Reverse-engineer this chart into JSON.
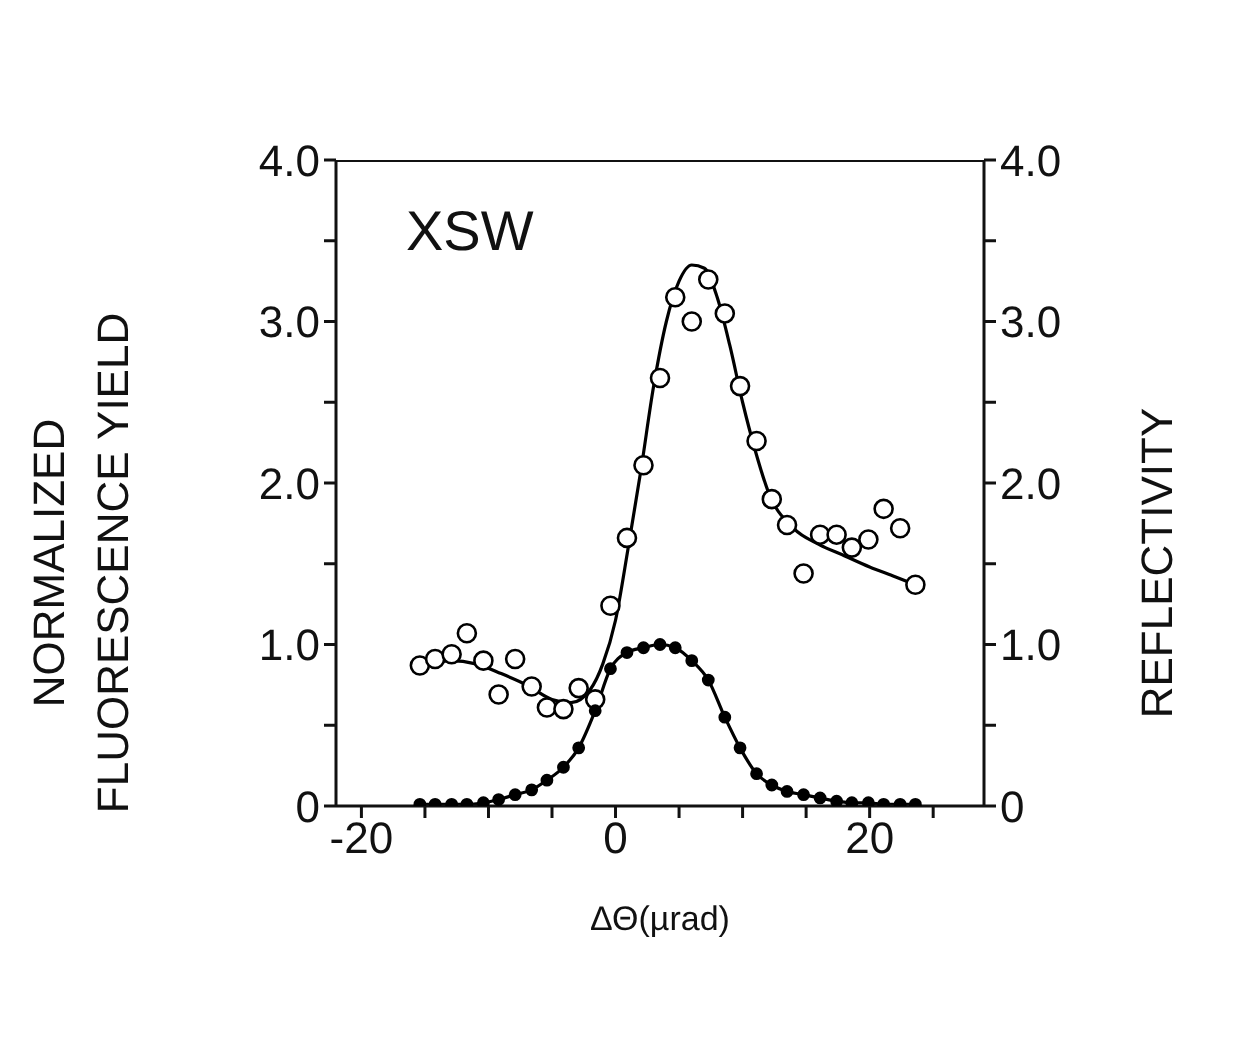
{
  "chart_data": {
    "type": "scatter",
    "xlabel": "ΔΘ(µrad)",
    "ylabel": "NORMALIZED\nFLUORESCENCE YIELD",
    "y2label": "REFLECTIVITY",
    "annotations": [
      "XSW"
    ],
    "xlim": [
      -22,
      29
    ],
    "xticks": [
      -20,
      {
        "value": -15,
        "label": null
      },
      {
        "value": -10,
        "label": null
      },
      {
        "value": -5,
        "label": null
      },
      0,
      {
        "value": 5,
        "label": null
      },
      {
        "value": 10,
        "label": null
      },
      {
        "value": 15,
        "label": null
      },
      20,
      {
        "value": 25,
        "label": null
      }
    ],
    "ylim": [
      0,
      4
    ],
    "yticks": [
      0,
      {
        "value": 0.5,
        "label": null
      },
      {
        "value": 1,
        "label": "1.0"
      },
      {
        "value": 1.5,
        "label": null
      },
      {
        "value": 2,
        "label": "2.0"
      },
      {
        "value": 2.5,
        "label": null
      },
      {
        "value": 3,
        "label": "3.0"
      },
      {
        "value": 3.5,
        "label": null
      },
      {
        "value": 4,
        "label": "4.0"
      }
    ],
    "y2lim": [
      0,
      4
    ],
    "y2ticks": [
      0,
      {
        "value": 0.5,
        "label": null
      },
      {
        "value": 1,
        "label": "1.0"
      },
      {
        "value": 1.5,
        "label": null
      },
      {
        "value": 2,
        "label": "2.0"
      },
      {
        "value": 2.5,
        "label": null
      },
      {
        "value": 3,
        "label": "3.0"
      },
      {
        "value": 3.5,
        "label": null
      },
      {
        "value": 4,
        "label": "4.0"
      }
    ],
    "series": [
      {
        "marker": "circle",
        "color": "#000000",
        "x": [
          -15.4,
          -14.2,
          -12.9,
          -11.7,
          -10.4,
          -9.2,
          -7.9,
          -6.6,
          -5.4,
          -4.1,
          -2.9,
          -1.6,
          -0.4,
          0.9,
          2.2,
          3.5,
          4.7,
          6.0,
          7.3,
          8.6,
          9.8,
          11.1,
          12.3,
          13.5,
          14.8,
          16.1,
          17.4,
          18.6,
          19.9,
          21.1,
          22.4,
          23.6
        ],
        "values": [
          0.87,
          0.91,
          0.94,
          1.07,
          0.9,
          0.69,
          0.91,
          0.74,
          0.61,
          0.6,
          0.73,
          0.66,
          1.24,
          1.66,
          2.11,
          2.65,
          3.15,
          3.0,
          3.26,
          3.05,
          2.6,
          2.26,
          1.9,
          1.74,
          1.44,
          1.68,
          1.68,
          1.6,
          1.65,
          1.84,
          1.72,
          1.37
        ]
      },
      {
        "type": "line",
        "marker": "none",
        "color": "#000000",
        "x": [
          -15.4,
          -13,
          -11,
          -9,
          -7,
          -5,
          -3.5,
          -2,
          -1,
          0,
          1,
          2,
          3,
          4,
          5,
          6,
          7,
          8,
          9,
          10,
          11,
          12,
          14,
          16,
          18,
          20,
          22,
          23.6
        ],
        "values": [
          0.86,
          0.9,
          0.88,
          0.82,
          0.75,
          0.66,
          0.64,
          0.72,
          0.88,
          1.15,
          1.6,
          2.08,
          2.6,
          3.0,
          3.25,
          3.35,
          3.33,
          3.15,
          2.85,
          2.5,
          2.2,
          1.95,
          1.72,
          1.62,
          1.55,
          1.48,
          1.42,
          1.37
        ]
      },
      {
        "type": "line",
        "marker": "circle",
        "axis": "y2",
        "color": "#000000",
        "x": [
          -15.4,
          -14.2,
          -12.9,
          -11.7,
          -10.4,
          -9.2,
          -7.9,
          -6.6,
          -5.4,
          -4.1,
          -2.9,
          -1.6,
          -0.4,
          0.9,
          2.2,
          3.5,
          4.7,
          6.0,
          7.3,
          8.6,
          9.8,
          11.1,
          12.3,
          13.5,
          14.8,
          16.1,
          17.4,
          18.6,
          19.9,
          21.1,
          22.4,
          23.6
        ],
        "values": [
          0.01,
          0.01,
          0.01,
          0.01,
          0.02,
          0.04,
          0.07,
          0.1,
          0.16,
          0.24,
          0.36,
          0.59,
          0.85,
          0.95,
          0.98,
          1.0,
          0.98,
          0.9,
          0.78,
          0.55,
          0.36,
          0.2,
          0.13,
          0.09,
          0.07,
          0.05,
          0.03,
          0.02,
          0.02,
          0.01,
          0.01,
          0.01
        ]
      }
    ]
  }
}
